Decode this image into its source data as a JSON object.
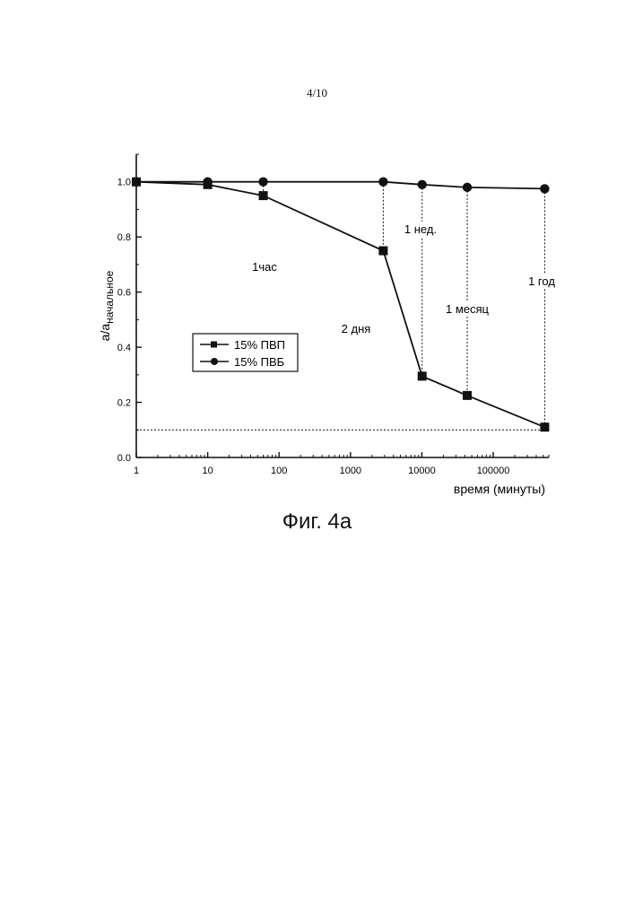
{
  "page_number": "4/10",
  "caption": "Фиг. 4а",
  "chart_data": {
    "type": "line",
    "x_scale": "log",
    "xlim": [
      1,
      600000
    ],
    "ylim": [
      0,
      1.1
    ],
    "xlabel": "время (минуты)",
    "ylabel_main": "a/a",
    "ylabel_sub": "начальное",
    "x_ticks": [
      {
        "value": 1,
        "label": "1"
      },
      {
        "value": 10,
        "label": "10"
      },
      {
        "value": 100,
        "label": "100"
      },
      {
        "value": 1000,
        "label": "1000"
      },
      {
        "value": 10000,
        "label": "10000"
      },
      {
        "value": 100000,
        "label": "100000"
      }
    ],
    "y_ticks": [
      {
        "value": 0,
        "label": "0.0"
      },
      {
        "value": 0.2,
        "label": "0.2"
      },
      {
        "value": 0.4,
        "label": "0.4"
      },
      {
        "value": 0.6,
        "label": "0.6"
      },
      {
        "value": 0.8,
        "label": "0.8"
      },
      {
        "value": 1.0,
        "label": "1.0"
      }
    ],
    "series": [
      {
        "name": "15% ПВП",
        "marker": "square",
        "x": [
          1,
          10,
          60,
          2880,
          10080,
          43200,
          525600
        ],
        "y": [
          1.0,
          0.99,
          0.95,
          0.75,
          0.295,
          0.225,
          0.11
        ]
      },
      {
        "name": "15% ПВБ",
        "marker": "circle",
        "x": [
          1,
          10,
          60,
          2880,
          10080,
          43200,
          525600
        ],
        "y": [
          1.0,
          1.0,
          1.0,
          1.0,
          0.99,
          0.98,
          0.975
        ]
      }
    ],
    "legend": "center-left",
    "reference_line_y": 0.1,
    "annotations": [
      {
        "text": "1час",
        "x": 60
      },
      {
        "text": "2 дня",
        "x": 2880
      },
      {
        "text": "1 нед.",
        "x": 10080
      },
      {
        "text": "1 месяц",
        "x": 43200
      },
      {
        "text": "1 год",
        "x": 525600
      }
    ]
  }
}
